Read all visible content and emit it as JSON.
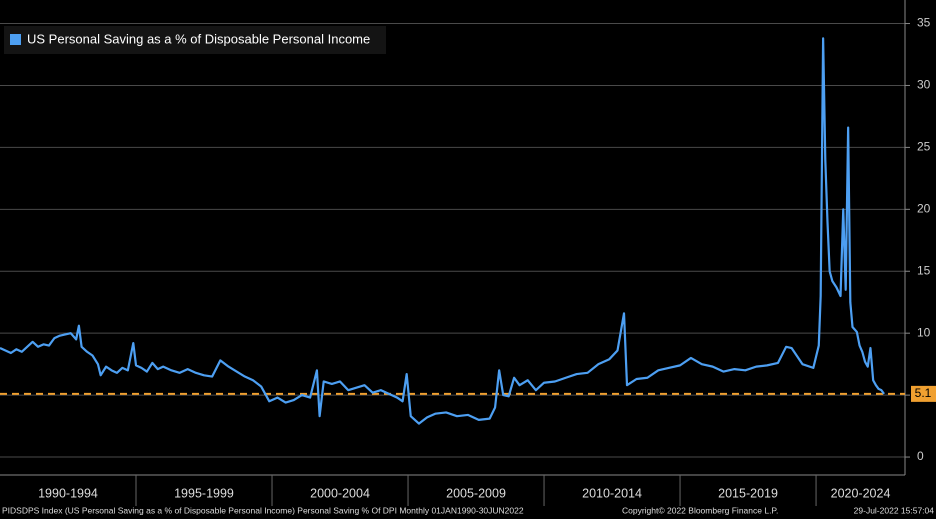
{
  "chart_data": {
    "type": "line",
    "legend": "US Personal Saving as a % of Disposable Personal Income",
    "footer_left": "PIDSDPS Index (US Personal Saving as a % of Disposable Personal Income) Personal Saving % Of DPI  Monthly 01JAN1990-30JUN2022",
    "footer_center": "Copyright© 2022 Bloomberg Finance L.P.",
    "footer_right": "29-Jul-2022 15:57:04",
    "x": [
      1990.0,
      1990.2,
      1990.4,
      1990.6,
      1990.8,
      1991.0,
      1991.2,
      1991.4,
      1991.6,
      1991.8,
      1992.0,
      1992.2,
      1992.4,
      1992.6,
      1992.8,
      1992.9,
      1993.0,
      1993.2,
      1993.4,
      1993.6,
      1993.7,
      1993.9,
      1994.1,
      1994.3,
      1994.5,
      1994.7,
      1994.9,
      1995.0,
      1995.2,
      1995.4,
      1995.6,
      1995.8,
      1996.0,
      1996.3,
      1996.6,
      1996.9,
      1997.2,
      1997.5,
      1997.8,
      1998.1,
      1998.4,
      1998.7,
      1999.0,
      1999.3,
      1999.6,
      1999.9,
      2000.2,
      2000.5,
      2000.8,
      2001.1,
      2001.4,
      2001.65,
      2001.75,
      2001.9,
      2002.2,
      2002.5,
      2002.8,
      2003.1,
      2003.4,
      2003.7,
      2004.0,
      2004.3,
      2004.6,
      2004.8,
      2004.95,
      2005.1,
      2005.4,
      2005.7,
      2006.0,
      2006.4,
      2006.8,
      2007.2,
      2007.6,
      2008.0,
      2008.2,
      2008.35,
      2008.5,
      2008.7,
      2008.9,
      2009.1,
      2009.4,
      2009.7,
      2010.0,
      2010.4,
      2010.8,
      2011.2,
      2011.6,
      2012.0,
      2012.4,
      2012.7,
      2012.94,
      2013.05,
      2013.4,
      2013.8,
      2014.2,
      2014.6,
      2015.0,
      2015.4,
      2015.8,
      2016.2,
      2016.6,
      2017.0,
      2017.4,
      2017.8,
      2018.2,
      2018.6,
      2018.9,
      2019.1,
      2019.5,
      2019.9,
      2020.1,
      2020.17,
      2020.26,
      2020.34,
      2020.42,
      2020.5,
      2020.6,
      2020.75,
      2020.9,
      2021.0,
      2021.09,
      2021.18,
      2021.26,
      2021.34,
      2021.42,
      2021.5,
      2021.6,
      2021.7,
      2021.8,
      2021.9,
      2022.0,
      2022.1,
      2022.2,
      2022.3,
      2022.4,
      2022.5
    ],
    "values": [
      8.8,
      8.6,
      8.4,
      8.7,
      8.5,
      8.9,
      9.3,
      8.9,
      9.1,
      9.0,
      9.6,
      9.8,
      9.9,
      10.0,
      9.5,
      10.6,
      8.9,
      8.5,
      8.2,
      7.5,
      6.6,
      7.3,
      7.0,
      6.8,
      7.2,
      7.0,
      9.2,
      7.4,
      7.2,
      6.9,
      7.6,
      7.1,
      7.3,
      7.0,
      6.8,
      7.1,
      6.8,
      6.6,
      6.5,
      7.8,
      7.3,
      6.9,
      6.5,
      6.2,
      5.7,
      4.5,
      4.8,
      4.4,
      4.6,
      5.0,
      4.8,
      7.0,
      3.3,
      6.1,
      5.9,
      6.1,
      5.4,
      5.6,
      5.8,
      5.2,
      5.4,
      5.1,
      4.8,
      4.5,
      6.7,
      3.3,
      2.7,
      3.2,
      3.5,
      3.6,
      3.3,
      3.4,
      3.0,
      3.1,
      4.0,
      7.0,
      5.0,
      4.9,
      6.4,
      5.8,
      6.2,
      5.4,
      6.0,
      6.1,
      6.4,
      6.7,
      6.8,
      7.5,
      7.9,
      8.6,
      11.6,
      5.8,
      6.3,
      6.4,
      7.0,
      7.2,
      7.4,
      8.0,
      7.5,
      7.3,
      6.9,
      7.1,
      7.0,
      7.3,
      7.4,
      7.6,
      8.9,
      8.8,
      7.5,
      7.2,
      9.0,
      13.0,
      33.8,
      24.0,
      19.0,
      15.0,
      14.2,
      13.7,
      13.0,
      20.0,
      13.5,
      26.6,
      12.5,
      10.5,
      10.3,
      10.1,
      9.0,
      8.5,
      7.7,
      7.3,
      8.8,
      6.2,
      5.8,
      5.5,
      5.4,
      5.1
    ],
    "color": "#4d9ff2",
    "xlim": [
      1990,
      2023.27
    ],
    "xticks": [
      {
        "value": 1990,
        "label": "1990-1994"
      },
      {
        "value": 1995,
        "label": "1995-1999"
      },
      {
        "value": 2000,
        "label": "2000-2004"
      },
      {
        "value": 2005,
        "label": "2005-2009"
      },
      {
        "value": 2010,
        "label": "2010-2014"
      },
      {
        "value": 2015,
        "label": "2015-2019"
      },
      {
        "value": 2020,
        "label": "2020-2024"
      }
    ],
    "ylim": [
      -1.45,
      36.9
    ],
    "yticks": [
      0,
      5,
      10,
      15,
      20,
      25,
      30,
      35
    ],
    "grid": true,
    "reference_line": {
      "value": 5.1,
      "color": "#f0a030"
    }
  }
}
